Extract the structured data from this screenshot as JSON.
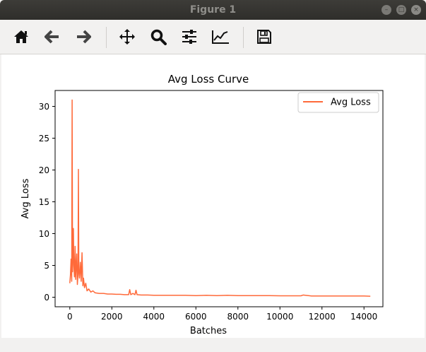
{
  "window": {
    "title": "Figure 1"
  },
  "toolbar": {
    "buttons": [
      {
        "icon": "home-icon",
        "tooltip": ""
      },
      {
        "icon": "back-arrow-icon"
      },
      {
        "icon": "forward-arrow-icon"
      },
      {
        "icon": "pan-move-icon"
      },
      {
        "icon": "zoom-magnifier-icon"
      },
      {
        "icon": "configure-subplots-icon"
      },
      {
        "icon": "edit-axis-icon"
      },
      {
        "icon": "save-floppy-icon"
      }
    ]
  },
  "chart_data": {
    "type": "line",
    "title": "Avg Loss Curve",
    "xlabel": "Batches",
    "ylabel": "Avg Loss",
    "xlim": [
      -700,
      14900
    ],
    "ylim": [
      -1.5,
      32.5
    ],
    "xticks": [
      0,
      2000,
      4000,
      6000,
      8000,
      10000,
      12000,
      14000
    ],
    "yticks": [
      0,
      5,
      10,
      15,
      20,
      25,
      30
    ],
    "legend_position": "upper right",
    "grid": false,
    "series": [
      {
        "name": "Avg Loss",
        "color": "#ff6a3a",
        "x": [
          0,
          30,
          60,
          90,
          110,
          130,
          150,
          170,
          190,
          220,
          250,
          280,
          300,
          330,
          360,
          390,
          410,
          430,
          460,
          500,
          540,
          580,
          620,
          650,
          700,
          760,
          820,
          900,
          1000,
          1100,
          1200,
          1400,
          1600,
          1800,
          2000,
          2200,
          2400,
          2600,
          2800,
          2850,
          2900,
          3000,
          3100,
          3150,
          3200,
          3400,
          3700,
          4000,
          4500,
          5000,
          5500,
          6000,
          6500,
          7000,
          7500,
          8000,
          8500,
          9000,
          9500,
          10000,
          10500,
          11000,
          11100,
          11500,
          12000,
          12500,
          13000,
          13500,
          14000,
          14300
        ],
        "y": [
          2.2,
          3.5,
          6.0,
          2.5,
          31.0,
          4.0,
          7.3,
          10.8,
          5.0,
          3.2,
          8.0,
          2.8,
          4.5,
          6.8,
          2.0,
          3.5,
          20.1,
          4.2,
          3.0,
          5.5,
          2.5,
          7.0,
          1.8,
          3.0,
          1.5,
          2.2,
          1.0,
          1.3,
          0.8,
          1.0,
          0.7,
          0.6,
          0.6,
          0.5,
          0.5,
          0.45,
          0.45,
          0.4,
          0.4,
          1.2,
          0.4,
          0.6,
          0.4,
          1.1,
          0.4,
          0.35,
          0.35,
          0.3,
          0.3,
          0.3,
          0.3,
          0.25,
          0.3,
          0.25,
          0.3,
          0.25,
          0.25,
          0.25,
          0.25,
          0.22,
          0.22,
          0.22,
          0.35,
          0.2,
          0.2,
          0.2,
          0.2,
          0.2,
          0.2,
          0.15
        ]
      }
    ]
  }
}
